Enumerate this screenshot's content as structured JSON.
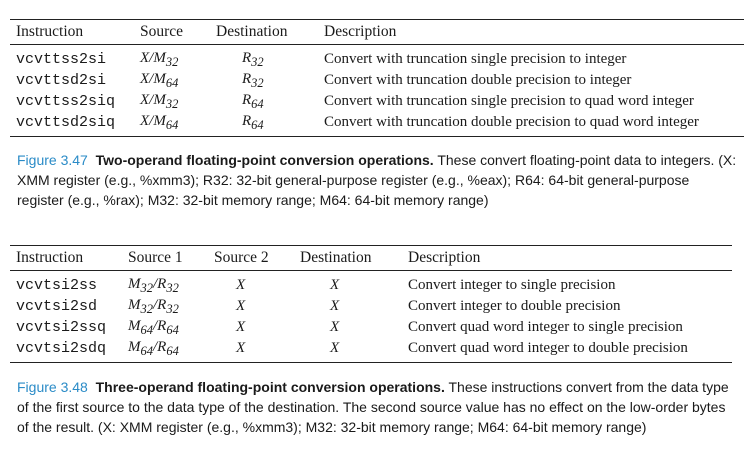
{
  "table1": {
    "headers": [
      "Instruction",
      "Source",
      "Destination",
      "Description"
    ],
    "rows": [
      {
        "instruction": "vcvttss2si",
        "source": "X/M32",
        "destination": "R32",
        "description": "Convert with truncation single precision to integer"
      },
      {
        "instruction": "vcvttsd2si",
        "source": "X/M64",
        "destination": "R32",
        "description": "Convert with truncation double precision to integer"
      },
      {
        "instruction": "vcvttss2siq",
        "source": "X/M32",
        "destination": "R64",
        "description": "Convert with truncation single precision to quad word integer"
      },
      {
        "instruction": "vcvttsd2siq",
        "source": "X/M64",
        "destination": "R64",
        "description": "Convert with truncation double precision to quad word integer"
      }
    ]
  },
  "caption1": {
    "label": "Figure 3.47",
    "title": "Two-operand floating-point conversion operations.",
    "text": "These convert floating-point data to integers. (X: XMM register (e.g., %xmm3); R32: 32-bit general-purpose register (e.g., %eax); R64: 64-bit general-purpose register (e.g., %rax); M32: 32-bit memory range; M64: 64-bit memory range)"
  },
  "table2": {
    "headers": [
      "Instruction",
      "Source 1",
      "Source 2",
      "Destination",
      "Description"
    ],
    "rows": [
      {
        "instruction": "vcvtsi2ss",
        "source1": "M32/R32",
        "source2": "X",
        "destination": "X",
        "description": "Convert integer to single precision"
      },
      {
        "instruction": "vcvtsi2sd",
        "source1": "M32/R32",
        "source2": "X",
        "destination": "X",
        "description": "Convert integer to double precision"
      },
      {
        "instruction": "vcvtsi2ssq",
        "source1": "M64/R64",
        "source2": "X",
        "destination": "X",
        "description": "Convert quad word integer to single precision"
      },
      {
        "instruction": "vcvtsi2sdq",
        "source1": "M64/R64",
        "source2": "X",
        "destination": "X",
        "description": "Convert quad word integer to double precision"
      }
    ]
  },
  "caption2": {
    "label": "Figure 3.48",
    "title": "Three-operand floating-point conversion operations.",
    "text": "These instructions convert from the data type of the first source to the data type of the destination. The second source value has no effect on the low-order bytes of the result. (X: XMM register (e.g., %xmm3); M32: 32-bit memory range; M64: 64-bit memory range)"
  },
  "colors": {
    "figure_label": "#2a8bc7",
    "text": "#1a1a1a",
    "rule": "#222222"
  }
}
